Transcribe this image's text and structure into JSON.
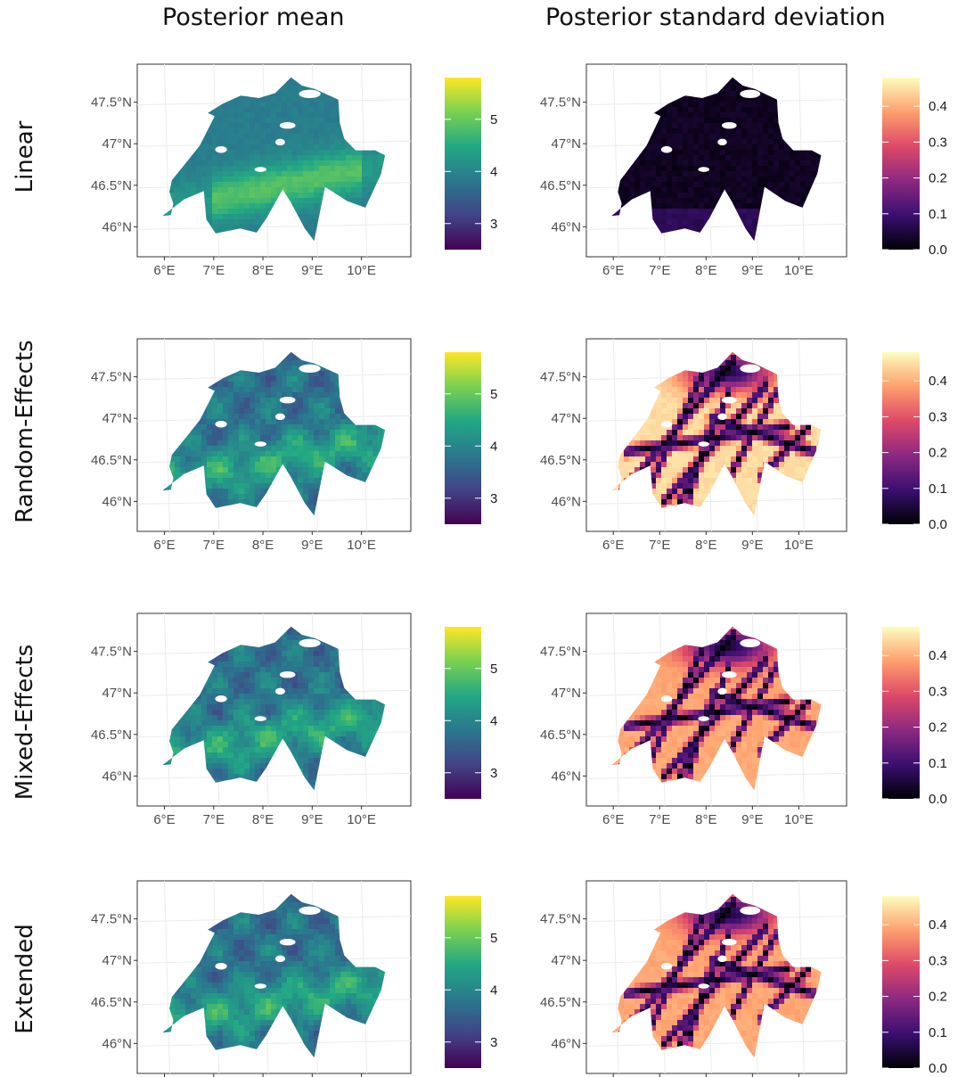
{
  "columns": [
    {
      "title": "Posterior mean",
      "colorscale": "viridis"
    },
    {
      "title": "Posterior standard deviation",
      "colorscale": "magma"
    }
  ],
  "rows": [
    {
      "label": "Linear"
    },
    {
      "label": "Random-Effects"
    },
    {
      "label": "Mixed-Effects"
    },
    {
      "label": "Extended"
    }
  ],
  "axes": {
    "lat_ticks": [
      "47.5°N",
      "47°N",
      "46.5°N",
      "46°N"
    ],
    "lon_ticks": [
      "6°E",
      "7°E",
      "8°E",
      "9°E",
      "10°E"
    ]
  },
  "chart_data": [
    {
      "type": "heatmap",
      "row": "Linear",
      "column": "Posterior mean",
      "colorscale": "viridis",
      "colorbar_ticks": [
        3,
        4,
        5
      ],
      "colorbar_range": [
        2.5,
        5.8
      ],
      "pattern": "smooth"
    },
    {
      "type": "heatmap",
      "row": "Linear",
      "column": "Posterior standard deviation",
      "colorscale": "magma",
      "colorbar_ticks": [
        0.0,
        0.1,
        0.2,
        0.3,
        0.4
      ],
      "colorbar_range": [
        0,
        0.48
      ],
      "pattern": "low"
    },
    {
      "type": "heatmap",
      "row": "Random-Effects",
      "column": "Posterior mean",
      "colorscale": "viridis",
      "colorbar_ticks": [
        3,
        4,
        5
      ],
      "colorbar_range": [
        2.5,
        5.8
      ],
      "pattern": "patchy"
    },
    {
      "type": "heatmap",
      "row": "Random-Effects",
      "column": "Posterior standard deviation",
      "colorscale": "magma",
      "colorbar_ticks": [
        0.0,
        0.1,
        0.2,
        0.3,
        0.4
      ],
      "colorbar_range": [
        0,
        0.48
      ],
      "pattern": "lines-high"
    },
    {
      "type": "heatmap",
      "row": "Mixed-Effects",
      "column": "Posterior mean",
      "colorscale": "viridis",
      "colorbar_ticks": [
        3,
        4,
        5
      ],
      "colorbar_range": [
        2.5,
        5.8
      ],
      "pattern": "patchy"
    },
    {
      "type": "heatmap",
      "row": "Mixed-Effects",
      "column": "Posterior standard deviation",
      "colorscale": "magma",
      "colorbar_ticks": [
        0.0,
        0.1,
        0.2,
        0.3,
        0.4
      ],
      "colorbar_range": [
        0,
        0.48
      ],
      "pattern": "lines-mid"
    },
    {
      "type": "heatmap",
      "row": "Extended",
      "column": "Posterior mean",
      "colorscale": "viridis",
      "colorbar_ticks": [
        3,
        4,
        5
      ],
      "colorbar_range": [
        2.5,
        5.8
      ],
      "pattern": "patchy"
    },
    {
      "type": "heatmap",
      "row": "Extended",
      "column": "Posterior standard deviation",
      "colorscale": "magma",
      "colorbar_ticks": [
        0.0,
        0.1,
        0.2,
        0.3,
        0.4
      ],
      "colorbar_range": [
        0,
        0.48
      ],
      "pattern": "lines-mid"
    }
  ]
}
